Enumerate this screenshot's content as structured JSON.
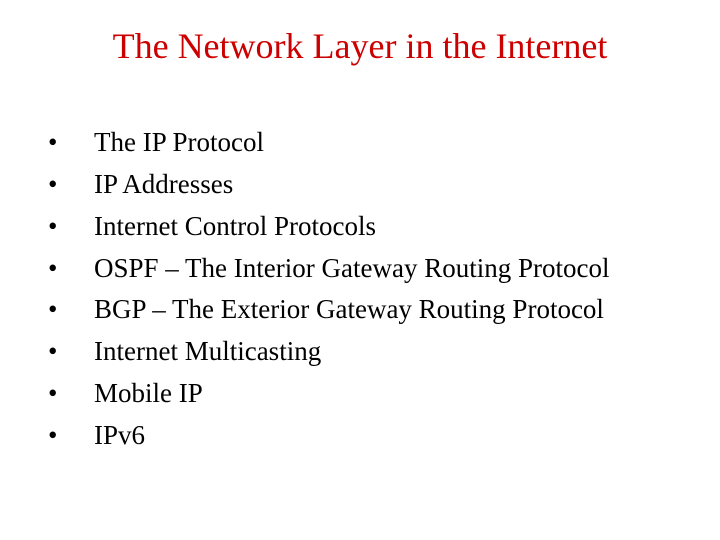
{
  "slide": {
    "title": "The Network Layer in the Internet",
    "title_color": "#cc0000",
    "title_fontsize": 36,
    "text_color": "#000000",
    "item_fontsize": 27,
    "line_height": 1.55,
    "bullet_char": "•",
    "background_color": "#ffffff",
    "items": [
      "The IP Protocol",
      "IP Addresses",
      "Internet Control Protocols",
      "OSPF – The Interior Gateway Routing Protocol",
      "BGP – The Exterior Gateway Routing Protocol",
      "Internet Multicasting",
      "Mobile IP",
      "IPv6"
    ]
  }
}
